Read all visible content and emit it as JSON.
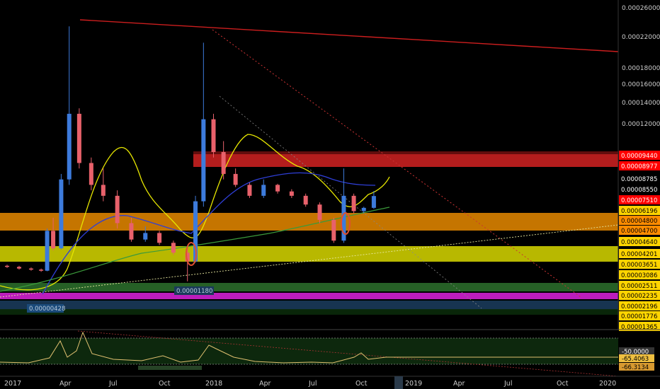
{
  "chart_data": {
    "type": "candlestick",
    "x_ticks": [
      "2017",
      "Apr",
      "Jul",
      "Oct",
      "2018",
      "Apr",
      "Jul",
      "Oct",
      "2019",
      "Apr",
      "Jul",
      "Oct",
      "2020"
    ],
    "y_ticks": [
      "0.00026000",
      "0.00022000",
      "0.00018000",
      "0.00016000",
      "0.00014000",
      "0.00012000"
    ],
    "price_labels": [
      {
        "text": "0.00009440",
        "bg": "#ff0000",
        "fg": "#ffffff"
      },
      {
        "text": "0.00008977",
        "bg": "#ff0000",
        "fg": "#ffffff"
      },
      {
        "text": "0.00008785",
        "bg": "#000000",
        "fg": "#ffffff"
      },
      {
        "text": "0.00008550",
        "bg": "#000000",
        "fg": "#ffffff"
      },
      {
        "text": "0.00007510",
        "bg": "#ff0000",
        "fg": "#ffffff"
      },
      {
        "text": "0.00006196",
        "bg": "#ffd400",
        "fg": "#000000"
      },
      {
        "text": "0.00004800",
        "bg": "#ff8c00",
        "fg": "#000000"
      },
      {
        "text": "0.00004700",
        "bg": "#ff8c00",
        "fg": "#000000"
      },
      {
        "text": "0.00004640",
        "bg": "#ffd400",
        "fg": "#000000"
      },
      {
        "text": "0.00004201",
        "bg": "#ffd400",
        "fg": "#000000"
      },
      {
        "text": "0.00003651",
        "bg": "#ffd400",
        "fg": "#000000"
      },
      {
        "text": "0.00003086",
        "bg": "#ffd400",
        "fg": "#000000"
      },
      {
        "text": "0.00002511",
        "bg": "#ffd400",
        "fg": "#000000"
      },
      {
        "text": "0.00002235",
        "bg": "#ffd400",
        "fg": "#000000"
      },
      {
        "text": "0.00002196",
        "bg": "#ffd400",
        "fg": "#000000"
      },
      {
        "text": "0.00001776",
        "bg": "#ffd400",
        "fg": "#000000"
      },
      {
        "text": "0.00001365",
        "bg": "#ffd400",
        "fg": "#000000"
      }
    ],
    "annotations": [
      "0.00001180",
      "0.00000428"
    ],
    "rsi_labels": [
      {
        "text": "-50.0000",
        "bg": "#333333",
        "fg": "#ffffff"
      },
      {
        "text": "-65.4063",
        "bg": "#f0c040",
        "fg": "#000000"
      },
      {
        "text": "-66.3134",
        "bg": "#d89a30",
        "fg": "#000000"
      }
    ],
    "colors": {
      "up": "#3d7bdc",
      "down": "#e8616b",
      "ema_fast": "#e6e600",
      "ema_mid": "#2f3fd8",
      "ema_slow": "#3b9a3b",
      "trend": "#cc1e1e"
    },
    "series": [
      {
        "x": 2017.0,
        "o": 2.6e-05,
        "h": 2.7e-05,
        "l": 2.4e-05,
        "c": 2.5e-05
      },
      {
        "x": 2017.06,
        "o": 2.5e-05,
        "h": 2.6e-05,
        "l": 2.25e-05,
        "c": 2.35e-05
      },
      {
        "x": 2017.12,
        "o": 2.35e-05,
        "h": 2.45e-05,
        "l": 2.15e-05,
        "c": 2.25e-05
      },
      {
        "x": 2017.17,
        "o": 2.25e-05,
        "h": 2.35e-05,
        "l": 2.05e-05,
        "c": 2.15e-05
      },
      {
        "x": 2017.2,
        "o": 2.15e-05,
        "h": 6e-05,
        "l": 2.1e-05,
        "c": 5.8e-05
      },
      {
        "x": 2017.23,
        "o": 5.8e-05,
        "h": 7e-05,
        "l": 4e-05,
        "c": 4.2e-05
      },
      {
        "x": 2017.27,
        "o": 4.2e-05,
        "h": 0.00011,
        "l": 4.1e-05,
        "c": 0.000105
      },
      {
        "x": 2017.31,
        "o": 0.000105,
        "h": 0.000245,
        "l": 0.0001,
        "c": 0.000165
      },
      {
        "x": 2017.36,
        "o": 0.000165,
        "h": 0.00017,
        "l": 0.000115,
        "c": 0.00012
      },
      {
        "x": 2017.42,
        "o": 0.00012,
        "h": 0.000125,
        "l": 9.5e-05,
        "c": 0.0001
      },
      {
        "x": 2017.48,
        "o": 0.0001,
        "h": 0.000115,
        "l": 8.5e-05,
        "c": 9e-05
      },
      {
        "x": 2017.55,
        "o": 9e-05,
        "h": 9.5e-05,
        "l": 6e-05,
        "c": 6.5e-05
      },
      {
        "x": 2017.62,
        "o": 6.5e-05,
        "h": 7e-05,
        "l": 4.8e-05,
        "c": 5e-05
      },
      {
        "x": 2017.69,
        "o": 5e-05,
        "h": 6.2e-05,
        "l": 4.8e-05,
        "c": 5.6e-05
      },
      {
        "x": 2017.76,
        "o": 5.6e-05,
        "h": 5.8e-05,
        "l": 4.5e-05,
        "c": 4.7e-05
      },
      {
        "x": 2017.83,
        "o": 4.7e-05,
        "h": 4.9e-05,
        "l": 3.6e-05,
        "c": 3.8e-05
      },
      {
        "x": 2017.9,
        "o": 3.8e-05,
        "h": 4.4e-05,
        "l": 1.18e-05,
        "c": 3e-05
      },
      {
        "x": 2017.94,
        "o": 3e-05,
        "h": 9e-05,
        "l": 2.9e-05,
        "c": 8.5e-05
      },
      {
        "x": 2017.98,
        "o": 8.5e-05,
        "h": 0.00023,
        "l": 8e-05,
        "c": 0.00016
      },
      {
        "x": 2018.03,
        "o": 0.00016,
        "h": 0.000165,
        "l": 0.000125,
        "c": 0.00013
      },
      {
        "x": 2018.08,
        "o": 0.00013,
        "h": 0.00014,
        "l": 0.000105,
        "c": 0.00011
      },
      {
        "x": 2018.14,
        "o": 0.00011,
        "h": 0.000115,
        "l": 9.8e-05,
        "c": 0.0001
      },
      {
        "x": 2018.21,
        "o": 0.0001,
        "h": 0.000102,
        "l": 8.8e-05,
        "c": 9e-05
      },
      {
        "x": 2018.28,
        "o": 9e-05,
        "h": 0.000105,
        "l": 8.8e-05,
        "c": 0.0001
      },
      {
        "x": 2018.35,
        "o": 0.0001,
        "h": 0.000101,
        "l": 9.2e-05,
        "c": 9.4e-05
      },
      {
        "x": 2018.42,
        "o": 9.4e-05,
        "h": 9.6e-05,
        "l": 8.8e-05,
        "c": 9e-05
      },
      {
        "x": 2018.49,
        "o": 9e-05,
        "h": 9.2e-05,
        "l": 8e-05,
        "c": 8.2e-05
      },
      {
        "x": 2018.56,
        "o": 8.2e-05,
        "h": 8.4e-05,
        "l": 6.5e-05,
        "c": 6.8e-05
      },
      {
        "x": 2018.63,
        "o": 6.8e-05,
        "h": 7e-05,
        "l": 4.7e-05,
        "c": 4.9e-05
      },
      {
        "x": 2018.68,
        "o": 4.9e-05,
        "h": 0.000115,
        "l": 4.7e-05,
        "c": 9e-05
      },
      {
        "x": 2018.73,
        "o": 9e-05,
        "h": 9.2e-05,
        "l": 7.4e-05,
        "c": 7.6e-05
      },
      {
        "x": 2018.78,
        "o": 7.6e-05,
        "h": 8e-05,
        "l": 7.4e-05,
        "c": 7.9e-05
      },
      {
        "x": 2018.83,
        "o": 7.9e-05,
        "h": 9.44e-05,
        "l": 7.8e-05,
        "c": 8.98e-05
      }
    ]
  }
}
